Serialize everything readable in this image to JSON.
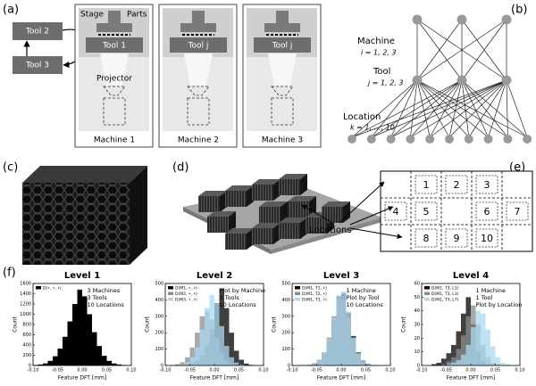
{
  "figure": {
    "panel_labels": [
      "(a)",
      "(b)",
      "(c)",
      "(d)",
      "(e)",
      "(f)"
    ],
    "a": {
      "tools_offline": [
        "Tool 2",
        "Tool 3"
      ],
      "stage": "Stage",
      "parts": "Parts",
      "machine_tools": [
        "Tool 1",
        "Tool j",
        "Tool j"
      ],
      "projector": "Projector",
      "machines": [
        "Machine 1",
        "Machine 2",
        "Machine 3"
      ]
    },
    "b": {
      "machine": "Machine",
      "machine_index": "i = 1, 2, 3",
      "tool": "Tool",
      "tool_index": "j = 1, 2, 3",
      "location": "Location",
      "location_index": "k = 1, …, 10"
    },
    "d": {
      "locations": "Locations"
    },
    "e": {
      "cells": [
        "1",
        "2",
        "3",
        "4",
        "5",
        "6",
        "7",
        "8",
        "9",
        "10"
      ]
    }
  },
  "chart_data": [
    {
      "type": "histogram",
      "title": "Level 1",
      "xlabel": "Feature DFT [mm]",
      "ylabel": "Count",
      "bins": [
        -0.1,
        -0.09,
        -0.08,
        -0.07,
        -0.06,
        -0.05,
        -0.04,
        -0.03,
        -0.02,
        -0.01,
        0,
        0.01,
        0.02,
        0.03,
        0.04,
        0.05,
        0.06,
        0.07,
        0.08,
        0.09,
        0.1
      ],
      "series": [
        {
          "name": "D(•, •, •)",
          "color": "#000000",
          "values": [
            10,
            20,
            40,
            90,
            180,
            330,
            560,
            860,
            1200,
            1480,
            1350,
            1000,
            650,
            380,
            190,
            90,
            40,
            20,
            10,
            5
          ]
        }
      ],
      "annotation": [
        "3 Machines",
        "3 Tools",
        "10 Locations"
      ],
      "legend": "upper left",
      "xlim": [
        -0.1,
        0.1
      ],
      "ylim": [
        0,
        1600
      ],
      "xticks": [
        {
          "value": -0.1,
          "label": "-0.10"
        },
        {
          "value": -0.05,
          "label": "-0.05"
        },
        {
          "value": 0,
          "label": "0.00"
        },
        {
          "value": 0.05,
          "label": "0.05"
        },
        {
          "value": 0.1,
          "label": "0.10"
        }
      ],
      "yticks": [
        0,
        200,
        400,
        600,
        800,
        1000,
        1200,
        1400,
        1600
      ]
    },
    {
      "type": "histogram",
      "title": "Level 2",
      "xlabel": "Feature DFT [mm]",
      "ylabel": "Count",
      "bins": [
        -0.1,
        -0.09,
        -0.08,
        -0.07,
        -0.06,
        -0.05,
        -0.04,
        -0.03,
        -0.02,
        -0.01,
        0,
        0.01,
        0.02,
        0.03,
        0.04,
        0.05,
        0.06,
        0.07,
        0.08,
        0.09,
        0.1
      ],
      "series": [
        {
          "name": "D(M1, •, •)",
          "color": "#000000",
          "values": [
            0,
            0,
            1,
            2,
            5,
            12,
            30,
            60,
            120,
            220,
            380,
            470,
            350,
            200,
            90,
            35,
            12,
            4,
            1,
            0
          ]
        },
        {
          "name": "D(M2, •, •)",
          "color": "#8c8c8c",
          "values": [
            1,
            3,
            8,
            20,
            50,
            110,
            200,
            300,
            330,
            280,
            170,
            80,
            30,
            10,
            3,
            1,
            0,
            0,
            0,
            0
          ]
        },
        {
          "name": "D(M3, •, •)",
          "color": "#a9d8f2",
          "values": [
            0,
            1,
            3,
            8,
            20,
            50,
            110,
            220,
            350,
            430,
            380,
            240,
            120,
            50,
            18,
            6,
            2,
            1,
            0,
            0
          ]
        }
      ],
      "annotation": [
        "Plot by Machine",
        "3 Tools",
        "10 Locations"
      ],
      "legend": "upper left",
      "xlim": [
        -0.1,
        0.1
      ],
      "ylim": [
        0,
        500
      ],
      "xticks": [
        {
          "value": -0.1,
          "label": "-0.10"
        },
        {
          "value": -0.05,
          "label": "-0.05"
        },
        {
          "value": 0,
          "label": "0.00"
        },
        {
          "value": 0.05,
          "label": "0.05"
        },
        {
          "value": 0.1,
          "label": "0.10"
        }
      ],
      "yticks": [
        0,
        100,
        200,
        300,
        400,
        500
      ]
    },
    {
      "type": "histogram",
      "title": "Level 3",
      "xlabel": "Feature DFT [mm]",
      "ylabel": "Count",
      "bins": [
        -0.1,
        -0.09,
        -0.08,
        -0.07,
        -0.06,
        -0.05,
        -0.04,
        -0.03,
        -0.02,
        -0.01,
        0,
        0.01,
        0.02,
        0.03,
        0.04,
        0.05,
        0.06,
        0.07,
        0.08,
        0.09,
        0.1
      ],
      "series": [
        {
          "name": "D(M1, T1, •)",
          "color": "#000000",
          "values": [
            0,
            1,
            2,
            5,
            12,
            30,
            70,
            150,
            280,
            420,
            440,
            320,
            180,
            80,
            30,
            10,
            3,
            1,
            0,
            0
          ]
        },
        {
          "name": "D(M1, T2, •)",
          "color": "#8c8c8c",
          "values": [
            0,
            1,
            3,
            6,
            15,
            35,
            80,
            170,
            300,
            410,
            400,
            290,
            160,
            70,
            25,
            8,
            2,
            1,
            0,
            0
          ]
        },
        {
          "name": "D(M1, T3, •)",
          "color": "#a9d8f2",
          "values": [
            0,
            1,
            2,
            5,
            13,
            32,
            75,
            160,
            290,
            430,
            450,
            330,
            170,
            75,
            28,
            9,
            3,
            1,
            0,
            0
          ]
        }
      ],
      "annotation": [
        "1 Machine",
        "Plot by Tool",
        "10 Locations"
      ],
      "legend": "upper left",
      "xlim": [
        -0.1,
        0.1
      ],
      "ylim": [
        0,
        500
      ],
      "xticks": [
        {
          "value": -0.1,
          "label": "-0.10"
        },
        {
          "value": -0.05,
          "label": "-0.05"
        },
        {
          "value": 0,
          "label": "0.00"
        },
        {
          "value": 0.05,
          "label": "0.05"
        },
        {
          "value": 0.1,
          "label": "0.10"
        }
      ],
      "yticks": [
        0,
        100,
        200,
        300,
        400,
        500
      ]
    },
    {
      "type": "histogram",
      "title": "Level 4",
      "xlabel": "Feature DFT [mm]",
      "ylabel": "Count",
      "bins": [
        -0.1,
        -0.09,
        -0.08,
        -0.07,
        -0.06,
        -0.05,
        -0.04,
        -0.03,
        -0.02,
        -0.01,
        0,
        0.01,
        0.02,
        0.03,
        0.04,
        0.05,
        0.06,
        0.07,
        0.08,
        0.09,
        0.1
      ],
      "series": [
        {
          "name": "D(M1, T3, L1)",
          "color": "#000000",
          "values": [
            0,
            0,
            1,
            2,
            5,
            9,
            15,
            25,
            38,
            50,
            30,
            10,
            3,
            1,
            0,
            0,
            0,
            0,
            0,
            0
          ]
        },
        {
          "name": "D(M1, T3, L3)",
          "color": "#8c8c8c",
          "values": [
            0,
            0,
            0,
            0,
            1,
            3,
            6,
            12,
            22,
            36,
            44,
            30,
            15,
            6,
            2,
            1,
            0,
            0,
            0,
            0
          ]
        },
        {
          "name": "D(M1, T3, L7)",
          "color": "#a9d8f2",
          "values": [
            0,
            0,
            0,
            0,
            0,
            1,
            2,
            4,
            8,
            15,
            28,
            40,
            38,
            26,
            14,
            6,
            2,
            1,
            0,
            0
          ]
        }
      ],
      "annotation": [
        "1 Machine",
        "1 Tool",
        "Plot by Location"
      ],
      "legend": "upper left",
      "xlim": [
        -0.1,
        0.1
      ],
      "ylim": [
        0,
        60
      ],
      "xticks": [
        {
          "value": -0.1,
          "label": "-0.10"
        },
        {
          "value": -0.05,
          "label": "-0.05"
        },
        {
          "value": 0,
          "label": "0.00"
        },
        {
          "value": 0.05,
          "label": "0.05"
        },
        {
          "value": 0.1,
          "label": "0.10"
        }
      ],
      "yticks": [
        0,
        10,
        20,
        30,
        40,
        50,
        60
      ]
    }
  ]
}
